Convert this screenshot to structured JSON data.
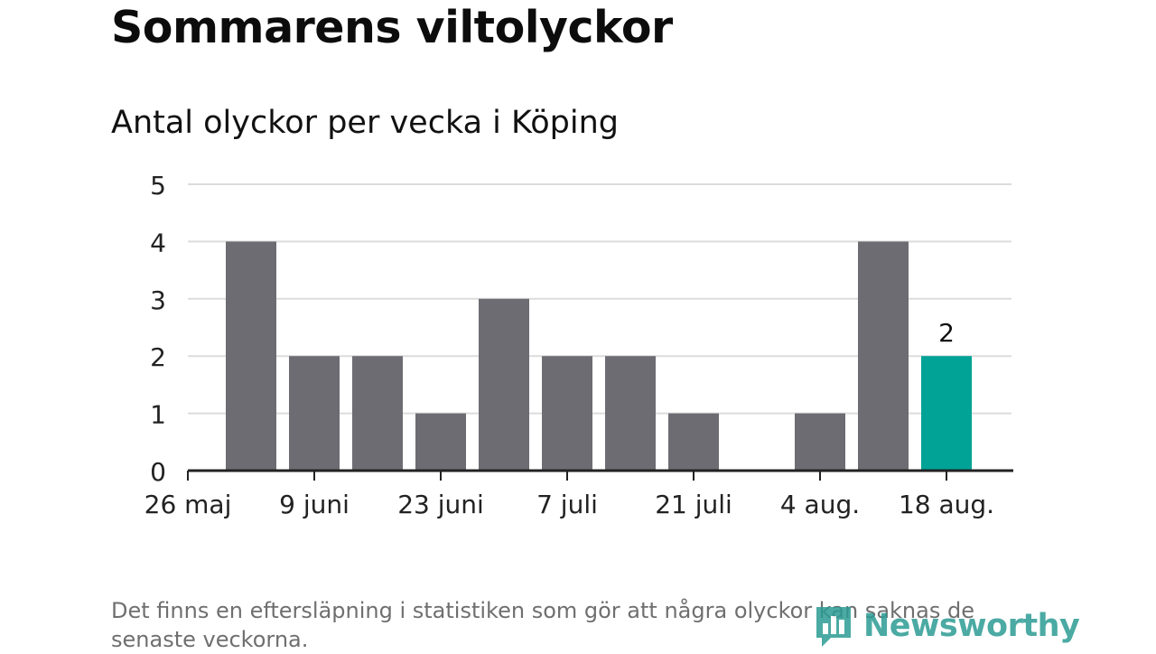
{
  "header": {
    "title": "Sommarens viltolyckor",
    "subtitle": "Antal olyckor per vecka i Köping"
  },
  "chart_data": {
    "type": "bar",
    "categories": [
      "26 maj",
      "2 juni",
      "9 juni",
      "16 juni",
      "23 juni",
      "30 juni",
      "7 juli",
      "14 juli",
      "21 juli",
      "28 juli",
      "4 aug.",
      "11 aug.",
      "18 aug."
    ],
    "values": [
      4,
      2,
      2,
      1,
      3,
      2,
      2,
      1,
      0,
      1,
      4,
      2,
      null
    ],
    "x_tick_labels": [
      "26 maj",
      "9 juni",
      "23 juni",
      "7 juli",
      "21 juli",
      "4 aug.",
      "18 aug."
    ],
    "y_ticks": [
      0,
      1,
      2,
      3,
      4,
      5
    ],
    "ylim": [
      0,
      5
    ],
    "grid": true,
    "highlight_index": 11,
    "highlight_label": "2",
    "colors": {
      "bar": "#6d6c72",
      "highlight": "#00a396",
      "grid": "#dcdcdc",
      "axis": "#222222"
    }
  },
  "footer": {
    "note": "Det finns en eftersläpning i statistiken som gör att några olyckor kan saknas de senaste veckorna.",
    "logo_text": "Newsworthy"
  }
}
